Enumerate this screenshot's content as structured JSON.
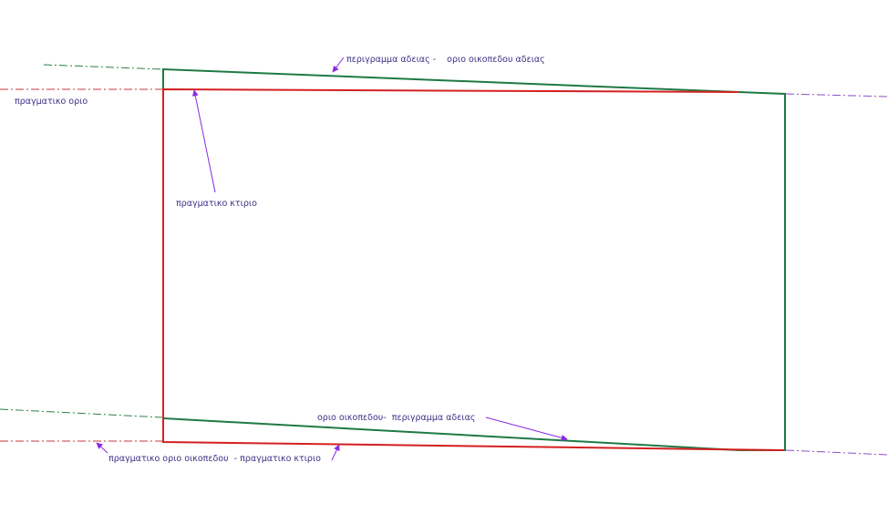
{
  "labels": {
    "top_permit": "περιγραμμα αδειας -    οριο οικοπεδου αδειας",
    "actual_limit": "πραγματικο οριο",
    "actual_building": "πραγματικο κτιριο",
    "bottom_permit": "οριο οικοπεδου-  περιγραμμα αδειας",
    "bottom_actual": "πραγματικο οριο οικοπεδου  - πραγματικο κτιριο"
  },
  "colors": {
    "permit_outline": "#1e7a45",
    "actual_outline": "#d42020",
    "dashdot_green": "#2f7d4a",
    "dashdot_red": "#c43838",
    "dashdot_purple": "#8a4fc6",
    "arrow": "#8a2be2",
    "text": "#3c2f86"
  }
}
